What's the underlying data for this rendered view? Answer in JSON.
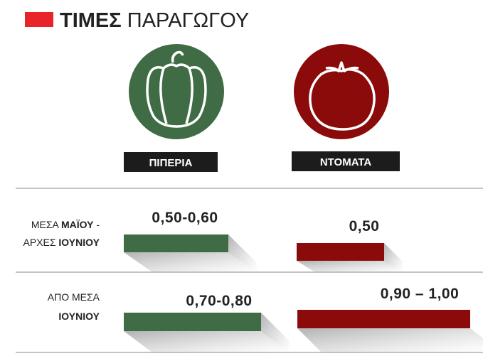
{
  "header": {
    "title_bold": "ΤΙΜΕΣ",
    "title_rest": "ΠΑΡΑΓΩΓΟΥ"
  },
  "products": [
    "ΠΙΠΕΡΙΑ",
    "ΝΤΟΜΑΤΑ"
  ],
  "rows": [
    {
      "label": [
        {
          "normal": "ΜΕΣΑ",
          "bold": "ΜΑΪΟΥ",
          "tail": "-"
        },
        {
          "normal": "ΑΡΧΕΣ",
          "bold": "ΙΟΥΝΙΟΥ"
        }
      ],
      "prices": [
        "0,50-0,60",
        "0,50"
      ]
    },
    {
      "label": [
        {
          "normal": "ΑΠΟ ΜΕΣΑ"
        },
        {
          "bold": "ΙΟΥΝΙΟΥ"
        }
      ],
      "prices": [
        "0,70-0,80",
        "0,90 – 1,00"
      ]
    }
  ]
}
